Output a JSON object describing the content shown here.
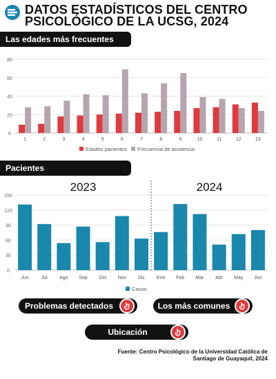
{
  "header": {
    "title_line1": "DATOS ESTADÍSTICOS DEL CENTRO",
    "title_line2": "PSICOLÓGICO DE LA UCSG, 2024"
  },
  "section1": {
    "label": "Las edades más frecuentes"
  },
  "section2": {
    "label": "Pacientes"
  },
  "colors": {
    "red": "#e03a3e",
    "mauve": "#b6a5ae",
    "teal": "#1a87ad",
    "dark": "#111111"
  },
  "chart_data": [
    {
      "type": "bar",
      "categories": [
        "1",
        "2",
        "3",
        "4",
        "5",
        "6",
        "7",
        "8",
        "9",
        "10",
        "11",
        "12",
        "13"
      ],
      "series": [
        {
          "name": "Edades pacientes",
          "values": [
            9,
            10,
            18,
            19,
            20,
            21,
            22,
            23,
            24,
            27,
            28,
            31,
            33
          ]
        },
        {
          "name": "Frecuencia de asistencia",
          "values": [
            28,
            29,
            35,
            42,
            41,
            69,
            43,
            54,
            65,
            39,
            37,
            27,
            24
          ]
        }
      ],
      "yticks": [
        0,
        20,
        40,
        60,
        80
      ],
      "ylim": [
        0,
        80
      ],
      "legend_position": "bottom-center"
    },
    {
      "type": "bar",
      "categories": [
        "Jun",
        "Jul",
        "Ago",
        "Sep",
        "Oct",
        "Nov",
        "Dic",
        "Ene",
        "Feb",
        "Mar",
        "Abr",
        "May",
        "Jun"
      ],
      "series": [
        {
          "name": "Casos",
          "values": [
            131,
            92,
            54,
            87,
            56,
            108,
            63,
            76,
            132,
            112,
            51,
            72,
            80
          ]
        }
      ],
      "yticks": [
        0,
        30,
        60,
        90,
        120,
        150
      ],
      "ylim": [
        0,
        150
      ],
      "year_labels": [
        "2023",
        "2024"
      ],
      "legend_position": "bottom-center"
    }
  ],
  "buttons": {
    "problemas": "Problemas detectados",
    "comunes": "Los más comunes",
    "ubicacion": "Ubicación"
  },
  "footer": {
    "source_line1": "Fuente: Centro Psicológico de la Universidad Católica de",
    "source_line2": "Santiago de Guayaquil, 2024"
  }
}
